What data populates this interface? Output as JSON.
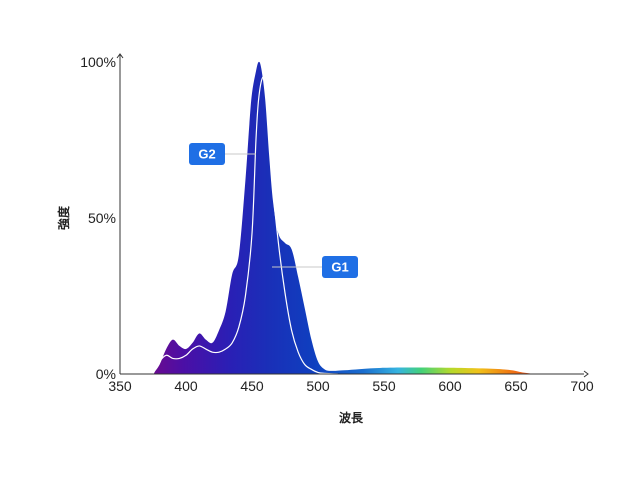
{
  "chart_data": {
    "type": "area",
    "xlabel": "波長",
    "ylabel": "強度",
    "xlim": [
      350,
      700
    ],
    "ylim": [
      0,
      100
    ],
    "x_ticks": [
      350,
      400,
      450,
      500,
      550,
      600,
      650,
      700
    ],
    "y_ticks": [
      {
        "value": 0,
        "label": "0%"
      },
      {
        "value": 50,
        "label": "50%"
      },
      {
        "value": 100,
        "label": "100%"
      }
    ],
    "grid": false,
    "series": [
      {
        "name": "G2",
        "style": "filled area, spectral color gradient",
        "x": [
          375,
          380,
          385,
          390,
          395,
          400,
          405,
          410,
          415,
          420,
          425,
          430,
          435,
          440,
          445,
          448,
          450,
          453,
          455,
          457,
          460,
          463,
          466,
          470,
          475,
          480,
          485,
          490,
          495,
          500,
          505,
          510,
          520,
          550,
          600,
          640,
          655,
          665
        ],
        "y": [
          0,
          3,
          8,
          11,
          9,
          8,
          10,
          13,
          11,
          10,
          14,
          20,
          32,
          38,
          62,
          80,
          90,
          97,
          100,
          98,
          88,
          70,
          55,
          45,
          42,
          40,
          31,
          21,
          11,
          4,
          1.5,
          1,
          1.2,
          2,
          2,
          1.5,
          0.5,
          0
        ]
      },
      {
        "name": "G1",
        "style": "thin white line",
        "x": [
          375,
          380,
          385,
          390,
          395,
          400,
          405,
          410,
          415,
          420,
          425,
          430,
          435,
          440,
          445,
          450,
          453,
          455,
          458,
          460,
          462,
          465,
          470,
          475,
          480,
          485,
          490,
          495,
          500,
          505,
          510,
          515
        ],
        "y": [
          0,
          4,
          6,
          5,
          5,
          6,
          8,
          9,
          8,
          7,
          7,
          8,
          10,
          15,
          25,
          45,
          75,
          88,
          95,
          92,
          82,
          63,
          42,
          26,
          14,
          7,
          3,
          1.5,
          0.5,
          0.2,
          0.1,
          0
        ]
      }
    ],
    "annotations": [
      {
        "label": "G2",
        "series": "G2",
        "x": 450,
        "y": 70
      },
      {
        "label": "G1",
        "series": "G1",
        "x": 466,
        "y": 34
      }
    ],
    "colors": {
      "axis": "#333333",
      "callout_bg": "#1f6fe5",
      "spectrum": [
        "#6a0a8f",
        "#4b0fa6",
        "#2a1fb5",
        "#1a2fb8",
        "#0f3fbf",
        "#1a6ecf",
        "#36b4e0",
        "#43d17a",
        "#b7d92a",
        "#f0c21a",
        "#f07a12",
        "#e8401c"
      ]
    }
  }
}
